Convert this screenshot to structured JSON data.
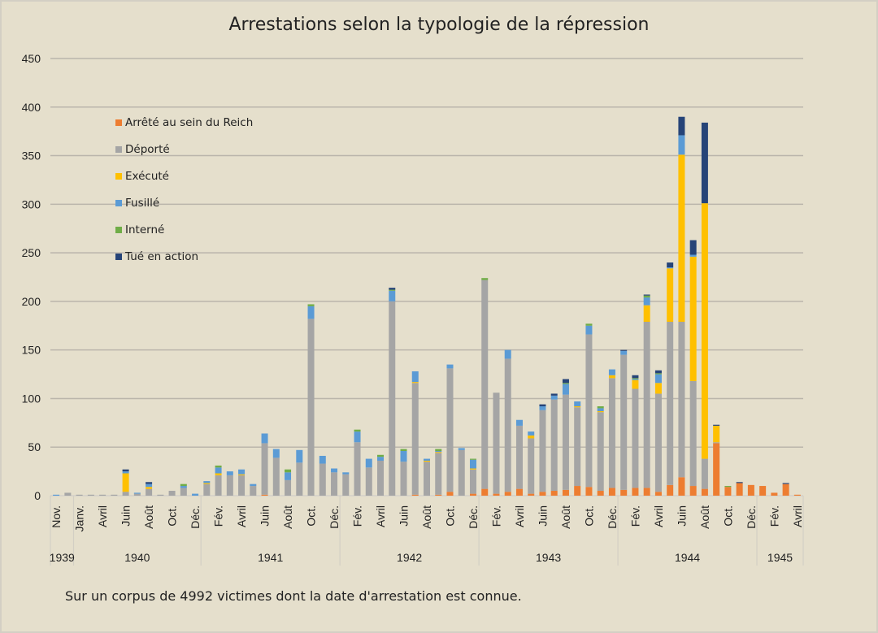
{
  "chart_data": {
    "type": "bar",
    "stacked": true,
    "title": "Arrestations selon la typologie de la répression",
    "footnote": "Sur un corpus de 4992 victimes dont la date d'arrestation est connue.",
    "ylim": [
      0,
      450
    ],
    "yticks": [
      "0",
      "50",
      "100",
      "150",
      "200",
      "250",
      "300",
      "350",
      "400",
      "450"
    ],
    "grid": true,
    "legend_position": "top-left",
    "tick_labels": [
      "Nov.",
      "",
      "Janv.",
      "",
      "Avril",
      "",
      "Juin",
      "",
      "Août",
      "",
      "Oct.",
      "",
      "Déc.",
      "",
      "Fév.",
      "",
      "Avril",
      "",
      "Juin",
      "",
      "Août",
      "",
      "Oct.",
      "",
      "Déc.",
      "",
      "Fév.",
      "",
      "Avril",
      "",
      "Juin",
      "",
      "Août",
      "",
      "Oct.",
      "",
      "Déc.",
      "",
      "Fév.",
      "",
      "Avril",
      "",
      "Juin",
      "",
      "Août",
      "",
      "Oct.",
      "",
      "Déc.",
      "",
      "Fév.",
      "",
      "Avril",
      "",
      "Juin",
      "",
      "Août",
      "",
      "Oct.",
      "",
      "Déc.",
      "",
      "Fév.",
      "",
      "Avril"
    ],
    "years": [
      {
        "label": "1939",
        "count": 2
      },
      {
        "label": "1940",
        "count": 11
      },
      {
        "label": "1941",
        "count": 12
      },
      {
        "label": "1942",
        "count": 12
      },
      {
        "label": "1943",
        "count": 12
      },
      {
        "label": "1944",
        "count": 12
      },
      {
        "label": "1945",
        "count": 4
      }
    ],
    "series": [
      {
        "name": "Arrêté au sein du Reich",
        "color": "#ed7d31",
        "values": [
          0,
          0,
          0,
          0,
          0,
          0,
          0,
          0,
          0,
          0,
          0,
          0,
          0,
          0,
          0,
          0,
          0,
          0,
          1,
          0,
          0,
          0,
          0,
          0,
          0,
          0,
          0,
          0,
          0,
          0,
          0,
          1,
          0,
          1,
          4,
          0,
          2,
          7,
          2,
          4,
          7,
          2,
          4,
          5,
          6,
          10,
          9,
          5,
          8,
          6,
          8,
          8,
          4,
          11,
          19,
          10,
          7,
          54,
          9,
          13,
          11,
          10,
          3,
          12,
          1
        ]
      },
      {
        "name": "Déporté",
        "color": "#a5a5a5",
        "values": [
          0,
          3,
          1,
          1,
          1,
          1,
          4,
          2,
          7,
          1,
          5,
          8,
          0,
          12,
          21,
          21,
          21,
          10,
          53,
          39,
          16,
          34,
          182,
          33,
          24,
          22,
          55,
          29,
          36,
          200,
          35,
          115,
          35,
          43,
          127,
          47,
          25,
          215,
          104,
          137,
          65,
          57,
          84,
          94,
          98,
          81,
          157,
          81,
          113,
          139,
          102,
          171,
          101,
          168,
          160,
          108,
          31,
          1,
          0,
          0,
          0,
          0,
          0,
          0,
          0
        ]
      },
      {
        "name": "Exécuté",
        "color": "#ffc000",
        "values": [
          0,
          0,
          0,
          0,
          0,
          0,
          19,
          0,
          2,
          0,
          0,
          0,
          0,
          1,
          2,
          0,
          1,
          0,
          0,
          0,
          0,
          0,
          0,
          0,
          0,
          0,
          0,
          0,
          0,
          0,
          0,
          1,
          1,
          1,
          0,
          0,
          1,
          0,
          0,
          0,
          0,
          3,
          0,
          0,
          0,
          1,
          0,
          1,
          3,
          0,
          9,
          17,
          11,
          55,
          172,
          128,
          263,
          17,
          0,
          0,
          0,
          0,
          0,
          0,
          0
        ]
      },
      {
        "name": "Fusillé",
        "color": "#5b9bd5",
        "values": [
          1,
          0,
          0,
          0,
          0,
          0,
          2,
          1,
          3,
          0,
          0,
          2,
          2,
          2,
          6,
          4,
          5,
          2,
          10,
          9,
          8,
          13,
          13,
          8,
          4,
          2,
          11,
          9,
          4,
          11,
          11,
          11,
          2,
          1,
          4,
          2,
          9,
          0,
          0,
          9,
          6,
          4,
          4,
          4,
          11,
          5,
          9,
          3,
          6,
          4,
          1,
          8,
          9,
          1,
          20,
          2,
          0,
          0,
          0,
          0,
          0,
          0,
          0,
          0,
          0
        ]
      },
      {
        "name": "Interné",
        "color": "#70ad47",
        "values": [
          0,
          0,
          0,
          0,
          0,
          0,
          0,
          0,
          0,
          0,
          0,
          2,
          0,
          0,
          2,
          0,
          0,
          0,
          0,
          0,
          3,
          0,
          2,
          0,
          0,
          0,
          2,
          0,
          2,
          1,
          2,
          0,
          0,
          2,
          0,
          0,
          1,
          2,
          0,
          0,
          0,
          0,
          0,
          0,
          1,
          0,
          2,
          2,
          0,
          0,
          1,
          2,
          1,
          0,
          0,
          0,
          0,
          0,
          1,
          0,
          0,
          0,
          0,
          0,
          0
        ]
      },
      {
        "name": "Tué en action",
        "color": "#264478",
        "values": [
          0,
          0,
          0,
          0,
          0,
          0,
          2,
          0,
          2,
          0,
          0,
          0,
          0,
          0,
          0,
          0,
          0,
          0,
          0,
          0,
          0,
          0,
          0,
          0,
          0,
          0,
          0,
          0,
          0,
          2,
          0,
          0,
          0,
          0,
          0,
          0,
          0,
          0,
          0,
          0,
          0,
          0,
          2,
          2,
          4,
          0,
          0,
          0,
          0,
          1,
          3,
          1,
          3,
          5,
          19,
          15,
          83,
          1,
          0,
          1,
          0,
          0,
          0,
          1,
          0
        ]
      }
    ]
  }
}
